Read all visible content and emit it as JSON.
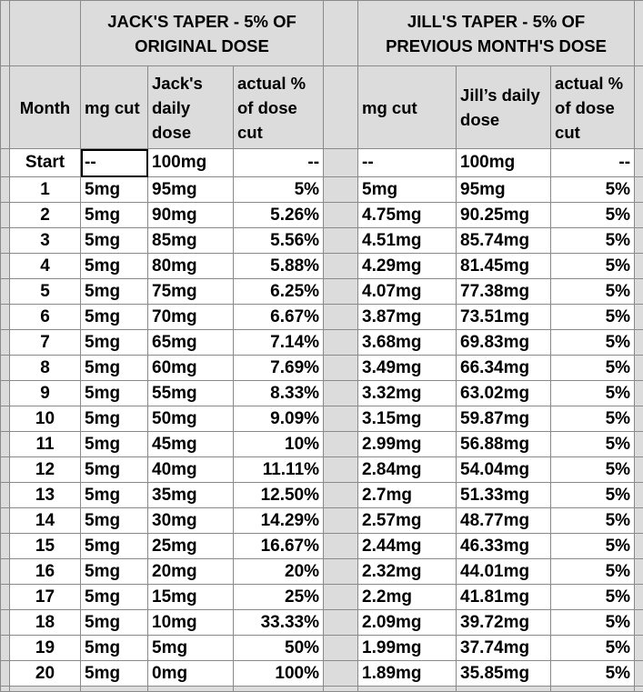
{
  "headers": {
    "jack_title": "JACK'S TAPER - 5% OF ORIGINAL DOSE",
    "jill_title": "JILL'S TAPER - 5% OF PREVIOUS MONTH'S DOSE",
    "columns": [
      "Month",
      "mg cut",
      "Jack's daily dose",
      "actual % of dose cut",
      "mg cut",
      "Jill’s daily dose",
      "actual % of dose cut"
    ]
  },
  "rows": [
    [
      "Start",
      "--",
      "100mg",
      "--",
      "--",
      "100mg",
      "--"
    ],
    [
      "1",
      "5mg",
      "95mg",
      "5%",
      "5mg",
      "95mg",
      "5%"
    ],
    [
      "2",
      "5mg",
      "90mg",
      "5.26%",
      "4.75mg",
      "90.25mg",
      "5%"
    ],
    [
      "3",
      "5mg",
      "85mg",
      "5.56%",
      "4.51mg",
      "85.74mg",
      "5%"
    ],
    [
      "4",
      "5mg",
      "80mg",
      "5.88%",
      "4.29mg",
      "81.45mg",
      "5%"
    ],
    [
      "5",
      "5mg",
      "75mg",
      "6.25%",
      "4.07mg",
      "77.38mg",
      "5%"
    ],
    [
      "6",
      "5mg",
      "70mg",
      "6.67%",
      "3.87mg",
      "73.51mg",
      "5%"
    ],
    [
      "7",
      "5mg",
      "65mg",
      "7.14%",
      "3.68mg",
      "69.83mg",
      "5%"
    ],
    [
      "8",
      "5mg",
      "60mg",
      "7.69%",
      "3.49mg",
      "66.34mg",
      "5%"
    ],
    [
      "9",
      "5mg",
      "55mg",
      "8.33%",
      "3.32mg",
      "63.02mg",
      "5%"
    ],
    [
      "10",
      "5mg",
      "50mg",
      "9.09%",
      "3.15mg",
      "59.87mg",
      "5%"
    ],
    [
      "11",
      "5mg",
      "45mg",
      "10%",
      "2.99mg",
      "56.88mg",
      "5%"
    ],
    [
      "12",
      "5mg",
      "40mg",
      "11.11%",
      "2.84mg",
      "54.04mg",
      "5%"
    ],
    [
      "13",
      "5mg",
      "35mg",
      "12.50%",
      "2.7mg",
      "51.33mg",
      "5%"
    ],
    [
      "14",
      "5mg",
      "30mg",
      "14.29%",
      "2.57mg",
      "48.77mg",
      "5%"
    ],
    [
      "15",
      "5mg",
      "25mg",
      "16.67%",
      "2.44mg",
      "46.33mg",
      "5%"
    ],
    [
      "16",
      "5mg",
      "20mg",
      "20%",
      "2.32mg",
      "44.01mg",
      "5%"
    ],
    [
      "17",
      "5mg",
      "15mg",
      "25%",
      "2.2mg",
      "41.81mg",
      "5%"
    ],
    [
      "18",
      "5mg",
      "10mg",
      "33.33%",
      "2.09mg",
      "39.72mg",
      "5%"
    ],
    [
      "19",
      "5mg",
      "5mg",
      "50%",
      "1.99mg",
      "37.74mg",
      "5%"
    ],
    [
      "20",
      "5mg",
      "0mg",
      "100%",
      "1.89mg",
      "35.85mg",
      "5%"
    ]
  ]
}
